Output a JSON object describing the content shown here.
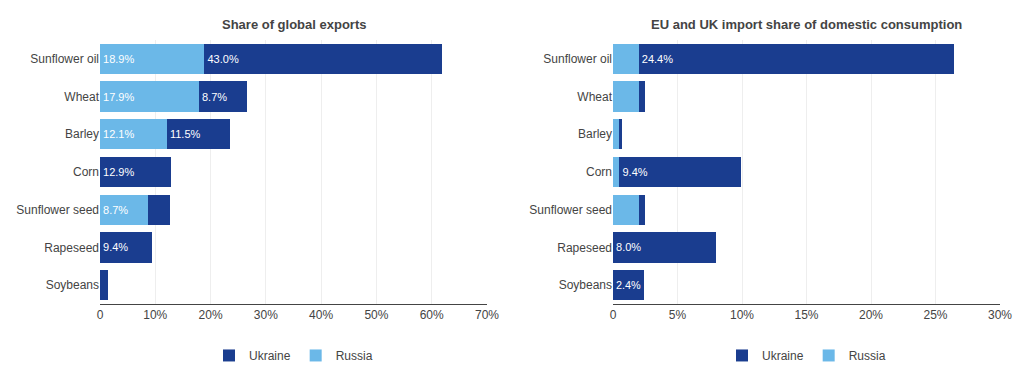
{
  "chart_data": [
    {
      "type": "bar",
      "orientation": "horizontal",
      "stacked": true,
      "data_labels": true,
      "grid": true,
      "legend": "bottom",
      "title": "Share of global exports",
      "categories": [
        "Sunflower oil",
        "Wheat",
        "Barley",
        "Corn",
        "Sunflower seed",
        "Rapeseed",
        "Soybeans"
      ],
      "series": [
        {
          "name": "Russia",
          "color": "#6bb8e8",
          "values": [
            18.9,
            17.9,
            12.1,
            0.0,
            8.7,
            0.0,
            0.0
          ],
          "value_labels": [
            "18.9%",
            "17.9%",
            "12.1%",
            null,
            "8.7%",
            null,
            null
          ]
        },
        {
          "name": "Ukraine",
          "color": "#1a3d8f",
          "values": [
            43.0,
            8.7,
            11.5,
            12.9,
            4.0,
            9.4,
            1.5
          ],
          "value_labels": [
            "43.0%",
            "8.7%",
            "11.5%",
            "12.9%",
            null,
            "9.4%",
            null
          ]
        }
      ],
      "xlim": [
        0,
        70
      ],
      "xticks": [
        0,
        {
          "value": 10,
          "label": "10%"
        },
        {
          "value": 20,
          "label": "20%"
        },
        {
          "value": 30,
          "label": "30%"
        },
        {
          "value": 40,
          "label": "40%"
        },
        {
          "value": 50,
          "label": "50%"
        },
        {
          "value": 60,
          "label": "60%"
        },
        {
          "value": 70,
          "label": "70%"
        }
      ]
    },
    {
      "type": "bar",
      "orientation": "horizontal",
      "stacked": true,
      "data_labels": true,
      "grid": true,
      "legend": "bottom",
      "title": "EU and UK import share of domestic consumption",
      "categories": [
        "Sunflower oil",
        "Wheat",
        "Barley",
        "Corn",
        "Sunflower seed",
        "Rapeseed",
        "Soybeans"
      ],
      "series": [
        {
          "name": "Russia",
          "color": "#6bb8e8",
          "values": [
            2.0,
            2.0,
            0.5,
            0.5,
            2.0,
            0.0,
            0.0
          ],
          "value_labels": [
            null,
            null,
            null,
            null,
            null,
            null,
            null
          ]
        },
        {
          "name": "Ukraine",
          "color": "#1a3d8f",
          "values": [
            24.4,
            0.5,
            0.2,
            9.4,
            0.5,
            8.0,
            2.4
          ],
          "value_labels": [
            "24.4%",
            null,
            null,
            "9.4%",
            null,
            "8.0%",
            "2.4%"
          ]
        }
      ],
      "xlim": [
        0,
        30
      ],
      "xticks": [
        0,
        {
          "value": 5,
          "label": "5%"
        },
        {
          "value": 10,
          "label": "10%"
        },
        {
          "value": 15,
          "label": "15%"
        },
        {
          "value": 20,
          "label": "20%"
        },
        {
          "value": 25,
          "label": "25%"
        },
        {
          "value": 30,
          "label": "30%"
        }
      ]
    }
  ]
}
